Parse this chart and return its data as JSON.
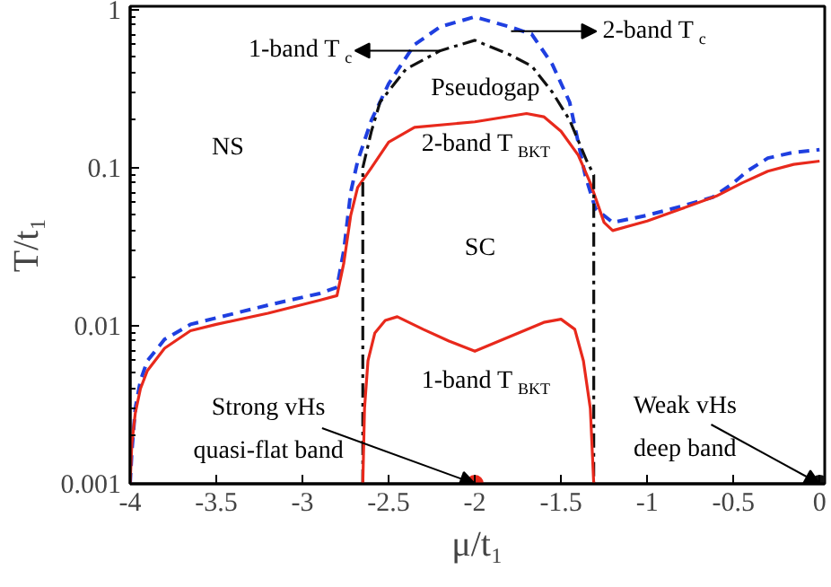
{
  "chart_data": {
    "type": "line",
    "xlabel": "μ/t₁",
    "ylabel": "T/t₁",
    "log": "y",
    "grid": false,
    "xlim": [
      -4,
      0.03
    ],
    "xticks": [
      -4,
      -3.5,
      -3,
      -2.5,
      -2,
      -1.5,
      -1,
      -0.5,
      0
    ],
    "ylim": [
      0.001,
      1.05
    ],
    "yticks": [
      0.001,
      0.01,
      0.1,
      1
    ],
    "series": [
      {
        "color": "#1f3fe0",
        "line_style": "dashed",
        "x": [
          -4,
          -3.99,
          -3.97,
          -3.94,
          -3.9,
          -3.8,
          -3.65,
          -3.5,
          -3.2,
          -2.9,
          -2.8,
          -2.76,
          -2.72,
          -2.68,
          -2.6,
          -2.5,
          -2.35,
          -2.2,
          -2.0,
          -1.8,
          -1.67,
          -1.55,
          -1.45,
          -1.36,
          -1.3,
          -1.2,
          -1.0,
          -0.8,
          -0.62,
          -0.5,
          -0.42,
          -0.3,
          -0.15,
          0
        ],
        "values": [
          0.001,
          0.0016,
          0.003,
          0.0045,
          0.006,
          0.0082,
          0.0102,
          0.0112,
          0.0135,
          0.016,
          0.0175,
          0.03,
          0.07,
          0.11,
          0.2,
          0.34,
          0.6,
          0.78,
          0.9,
          0.78,
          0.7,
          0.45,
          0.26,
          0.09,
          0.055,
          0.045,
          0.05,
          0.057,
          0.065,
          0.08,
          0.095,
          0.115,
          0.125,
          0.13
        ]
      },
      {
        "color": "#e8291c",
        "line_style": "solid",
        "x": [
          -4,
          -3.99,
          -3.97,
          -3.94,
          -3.9,
          -3.8,
          -3.65,
          -3.5,
          -3.2,
          -2.9,
          -2.8,
          -2.76,
          -2.72,
          -2.68,
          -2.6,
          -2.5,
          -2.35,
          -2.0,
          -1.7,
          -1.6,
          -1.5,
          -1.4,
          -1.33,
          -1.25,
          -1.2,
          -1.0,
          -0.8,
          -0.6,
          -0.45,
          -0.3,
          -0.15,
          0
        ],
        "values": [
          0.001,
          0.0018,
          0.0028,
          0.004,
          0.0052,
          0.0072,
          0.0093,
          0.0102,
          0.012,
          0.0145,
          0.0155,
          0.025,
          0.05,
          0.075,
          0.1,
          0.145,
          0.18,
          0.195,
          0.22,
          0.21,
          0.17,
          0.12,
          0.08,
          0.045,
          0.04,
          0.046,
          0.055,
          0.066,
          0.08,
          0.095,
          0.105,
          0.11
        ]
      },
      {
        "color": "#111111",
        "line_style": "dashdot",
        "x": [
          -2.65,
          -2.65,
          -2.6,
          -2.55,
          -2.4,
          -2.2,
          -2.0,
          -1.8,
          -1.67,
          -1.55,
          -1.45,
          -1.35,
          -1.31,
          -1.31
        ],
        "values": [
          0.001,
          0.1,
          0.17,
          0.26,
          0.42,
          0.55,
          0.64,
          0.52,
          0.44,
          0.3,
          0.2,
          0.11,
          0.09,
          0.001
        ]
      },
      {
        "color": "#e8291c",
        "line_style": "solid",
        "x": [
          -2.65,
          -2.64,
          -2.62,
          -2.58,
          -2.52,
          -2.45,
          -2.3,
          -2.15,
          -2.0,
          -1.8,
          -1.6,
          -1.5,
          -1.42,
          -1.37,
          -1.33,
          -1.31
        ],
        "values": [
          0.001,
          0.003,
          0.006,
          0.009,
          0.0108,
          0.0114,
          0.0095,
          0.008,
          0.0069,
          0.0085,
          0.0105,
          0.011,
          0.0095,
          0.006,
          0.003,
          0.001
        ]
      },
      {
        "type": "scatter",
        "marker": "circle",
        "x": [
          -2,
          0
        ],
        "values": [
          0.001,
          0.001
        ],
        "colors": [
          "#e8291c",
          "#111111"
        ]
      }
    ],
    "annotations": [
      "NS",
      "SC",
      "Pseudogap",
      "2-band T$_{BKT}$",
      "1-band T$_{BKT}$",
      {
        "text": "1-band T$_{c}$",
        "x": -2.2,
        "y": 0.55
      },
      {
        "text": "2-band T$_{c}$",
        "x": -1.79,
        "y": 0.73
      },
      {
        "text": "Strong vHs\nquasi-flat band",
        "x": -2,
        "y": 0.001
      },
      {
        "text": "Weak vHs\ndeep band",
        "x": 0,
        "y": 0.001
      }
    ]
  }
}
